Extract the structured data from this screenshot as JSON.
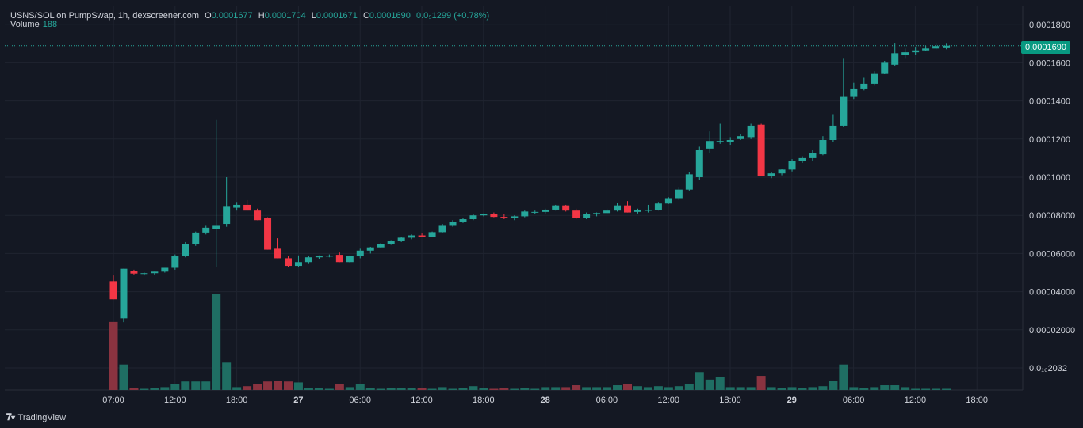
{
  "legend": {
    "pair": "USNS/SOL on PumpSwap, 1h, dexscreener.com",
    "open_label": "O",
    "open": "0.0001677",
    "high_label": "H",
    "high": "0.0001704",
    "low_label": "L",
    "low": "0.0001671",
    "close_label": "C",
    "close": "0.0001690",
    "change": "0.0₅1299 (+0.78%)",
    "volume_label": "Volume",
    "volume": "188"
  },
  "last_price_badge": "0.0001690",
  "footer": {
    "brand": "TradingView"
  },
  "colors": {
    "up": "#26a69a",
    "down": "#f23645",
    "up_volume": "#1f6e63",
    "down_volume": "#8a3340",
    "grid": "#1f2430"
  },
  "chart_data": {
    "type": "candlestick",
    "symbol": "USNS/SOL",
    "interval": "1h",
    "y_axis_ticks": [
      "0.0001800",
      "0.0001600",
      "0.0001400",
      "0.0001200",
      "0.0001000",
      "0.00008000",
      "0.00006000",
      "0.00004000",
      "0.00002000",
      "0.0₁₀2032"
    ],
    "y_axis_values": [
      0.00018,
      0.00016,
      0.00014,
      0.00012,
      0.0001,
      8e-05,
      6e-05,
      4e-05,
      2e-05,
      0
    ],
    "x_axis_ticks": [
      "07:00",
      "12:00",
      "18:00",
      "27",
      "06:00",
      "12:00",
      "18:00",
      "28",
      "06:00",
      "12:00",
      "18:00",
      "29",
      "06:00",
      "12:00",
      "18:00"
    ],
    "x_axis_bold": [
      false,
      false,
      false,
      true,
      false,
      false,
      false,
      true,
      false,
      false,
      false,
      true,
      false,
      false,
      false
    ],
    "ylim": [
      0,
      0.00019
    ],
    "grid": true,
    "candles": [
      {
        "o": 4.55e-05,
        "h": 4.85e-05,
        "l": 3.6e-05,
        "c": 3.6e-05,
        "v": 3.6e-05
      },
      {
        "o": 2.6e-05,
        "h": 5.2e-05,
        "l": 2.4e-05,
        "c": 5.2e-05,
        "v": 1.35e-05
      },
      {
        "o": 5.1e-05,
        "h": 5.15e-05,
        "l": 4.9e-05,
        "c": 4.95e-05,
        "v": 1e-06
      },
      {
        "o": 4.95e-05,
        "h": 5e-05,
        "l": 4.85e-05,
        "c": 4.97e-05,
        "v": 5e-07
      },
      {
        "o": 4.97e-05,
        "h": 5.05e-05,
        "l": 4.9e-05,
        "c": 5.05e-05,
        "v": 1e-06
      },
      {
        "o": 5.05e-05,
        "h": 5.25e-05,
        "l": 5e-05,
        "c": 5.25e-05,
        "v": 1.5e-06
      },
      {
        "o": 5.25e-05,
        "h": 5.95e-05,
        "l": 5.15e-05,
        "c": 5.85e-05,
        "v": 3e-06
      },
      {
        "o": 5.85e-05,
        "h": 6.6e-05,
        "l": 5.8e-05,
        "c": 6.5e-05,
        "v": 4.5e-06
      },
      {
        "o": 6.5e-05,
        "h": 7.15e-05,
        "l": 6.4e-05,
        "c": 7.1e-05,
        "v": 4.5e-06
      },
      {
        "o": 7.1e-05,
        "h": 7.45e-05,
        "l": 7e-05,
        "c": 7.35e-05,
        "v": 4.5e-06
      },
      {
        "o": 7.3e-05,
        "h": 0.00013,
        "l": 5.3e-05,
        "c": 7.45e-05,
        "v": 5.1e-05
      },
      {
        "o": 7.55e-05,
        "h": 0.0001,
        "l": 7.4e-05,
        "c": 8.45e-05,
        "v": 1.45e-05
      },
      {
        "o": 8.4e-05,
        "h": 8.7e-05,
        "l": 8.25e-05,
        "c": 8.55e-05,
        "v": 1.5e-06
      },
      {
        "o": 8.55e-05,
        "h": 8.8e-05,
        "l": 8.25e-05,
        "c": 8.25e-05,
        "v": 2e-06
      },
      {
        "o": 8.25e-05,
        "h": 8.35e-05,
        "l": 7.75e-05,
        "c": 7.75e-05,
        "v": 3e-06
      },
      {
        "o": 7.85e-05,
        "h": 7.9e-05,
        "l": 6.2e-05,
        "c": 6.2e-05,
        "v": 4.5e-06
      },
      {
        "o": 6.25e-05,
        "h": 6.8e-05,
        "l": 5.75e-05,
        "c": 5.75e-05,
        "v": 5e-06
      },
      {
        "o": 5.75e-05,
        "h": 5.85e-05,
        "l": 5.3e-05,
        "c": 5.35e-05,
        "v": 4.5e-06
      },
      {
        "o": 5.35e-05,
        "h": 5.9e-05,
        "l": 5.3e-05,
        "c": 5.55e-05,
        "v": 4e-06
      },
      {
        "o": 5.55e-05,
        "h": 5.85e-05,
        "l": 5.45e-05,
        "c": 5.8e-05,
        "v": 1e-06
      },
      {
        "o": 5.8e-05,
        "h": 5.9e-05,
        "l": 5.7e-05,
        "c": 5.85e-05,
        "v": 1e-06
      },
      {
        "o": 5.85e-05,
        "h": 5.95e-05,
        "l": 5.8e-05,
        "c": 5.88e-05,
        "v": 5e-07
      },
      {
        "o": 5.93e-05,
        "h": 6.05e-05,
        "l": 5.55e-05,
        "c": 5.55e-05,
        "v": 3e-06
      },
      {
        "o": 5.55e-05,
        "h": 5.9e-05,
        "l": 5.5e-05,
        "c": 5.88e-05,
        "v": 1.5e-06
      },
      {
        "o": 5.85e-05,
        "h": 6.25e-05,
        "l": 5.75e-05,
        "c": 6.15e-05,
        "v": 3e-06
      },
      {
        "o": 6.15e-05,
        "h": 6.35e-05,
        "l": 6e-05,
        "c": 6.32e-05,
        "v": 1e-06
      },
      {
        "o": 6.32e-05,
        "h": 6.55e-05,
        "l": 6.3e-05,
        "c": 6.5e-05,
        "v": 5e-07
      },
      {
        "o": 6.5e-05,
        "h": 6.7e-05,
        "l": 6.45e-05,
        "c": 6.65e-05,
        "v": 1e-06
      },
      {
        "o": 6.65e-05,
        "h": 6.85e-05,
        "l": 6.6e-05,
        "c": 6.83e-05,
        "v": 1e-06
      },
      {
        "o": 6.83e-05,
        "h": 7e-05,
        "l": 6.75e-05,
        "c": 6.95e-05,
        "v": 1e-06
      },
      {
        "o": 6.95e-05,
        "h": 7.05e-05,
        "l": 6.85e-05,
        "c": 6.88e-05,
        "v": 1e-06
      },
      {
        "o": 6.88e-05,
        "h": 7.15e-05,
        "l": 6.85e-05,
        "c": 7.12e-05,
        "v": 5e-07
      },
      {
        "o": 7.12e-05,
        "h": 7.55e-05,
        "l": 7.1e-05,
        "c": 7.45e-05,
        "v": 1.5e-06
      },
      {
        "o": 7.45e-05,
        "h": 7.75e-05,
        "l": 7.4e-05,
        "c": 7.65e-05,
        "v": 5e-07
      },
      {
        "o": 7.65e-05,
        "h": 7.85e-05,
        "l": 7.6e-05,
        "c": 7.8e-05,
        "v": 1e-06
      },
      {
        "o": 7.8e-05,
        "h": 8.05e-05,
        "l": 7.75e-05,
        "c": 8e-05,
        "v": 2e-06
      },
      {
        "o": 8e-05,
        "h": 8.1e-05,
        "l": 7.95e-05,
        "c": 8.05e-05,
        "v": 1e-06
      },
      {
        "o": 8.05e-05,
        "h": 8.15e-05,
        "l": 7.9e-05,
        "c": 7.92e-05,
        "v": 5e-07
      },
      {
        "o": 7.92e-05,
        "h": 8.05e-05,
        "l": 7.8e-05,
        "c": 7.85e-05,
        "v": 1e-06
      },
      {
        "o": 7.85e-05,
        "h": 8e-05,
        "l": 7.75e-05,
        "c": 7.95e-05,
        "v": 5e-07
      },
      {
        "o": 7.95e-05,
        "h": 8.25e-05,
        "l": 7.9e-05,
        "c": 8.2e-05,
        "v": 1e-06
      },
      {
        "o": 8.18e-05,
        "h": 8.25e-05,
        "l": 8.05e-05,
        "c": 8.18e-05,
        "v": 5e-07
      },
      {
        "o": 8.18e-05,
        "h": 8.35e-05,
        "l": 8.1e-05,
        "c": 8.3e-05,
        "v": 1.5e-06
      },
      {
        "o": 8.3e-05,
        "h": 8.55e-05,
        "l": 8.25e-05,
        "c": 8.52e-05,
        "v": 1.5e-06
      },
      {
        "o": 8.52e-05,
        "h": 8.55e-05,
        "l": 8.2e-05,
        "c": 8.25e-05,
        "v": 1.5e-06
      },
      {
        "o": 8.25e-05,
        "h": 8.35e-05,
        "l": 7.8e-05,
        "c": 7.85e-05,
        "v": 2.5e-06
      },
      {
        "o": 7.85e-05,
        "h": 8.15e-05,
        "l": 7.8e-05,
        "c": 8.05e-05,
        "v": 1.5e-06
      },
      {
        "o": 8.05e-05,
        "h": 8.15e-05,
        "l": 7.95e-05,
        "c": 8.12e-05,
        "v": 1.5e-06
      },
      {
        "o": 8.12e-05,
        "h": 8.35e-05,
        "l": 8.1e-05,
        "c": 8.25e-05,
        "v": 1.5e-06
      },
      {
        "o": 8.25e-05,
        "h": 8.65e-05,
        "l": 8.2e-05,
        "c": 8.52e-05,
        "v": 2.5e-06
      },
      {
        "o": 8.52e-05,
        "h": 8.75e-05,
        "l": 8.15e-05,
        "c": 8.15e-05,
        "v": 3e-06
      },
      {
        "o": 8.18e-05,
        "h": 8.35e-05,
        "l": 8.1e-05,
        "c": 8.3e-05,
        "v": 2e-06
      },
      {
        "o": 8.25e-05,
        "h": 8.55e-05,
        "l": 8.15e-05,
        "c": 8.28e-05,
        "v": 1.5e-06
      },
      {
        "o": 8.28e-05,
        "h": 8.7e-05,
        "l": 8.25e-05,
        "c": 8.62e-05,
        "v": 2e-06
      },
      {
        "o": 8.62e-05,
        "h": 8.95e-05,
        "l": 8.6e-05,
        "c": 8.9e-05,
        "v": 1.5e-06
      },
      {
        "o": 8.9e-05,
        "h": 9.45e-05,
        "l": 8.8e-05,
        "c": 9.35e-05,
        "v": 2e-06
      },
      {
        "o": 9.35e-05,
        "h": 0.0001025,
        "l": 9.3e-05,
        "c": 0.0001015,
        "v": 3e-06
      },
      {
        "o": 0.0001,
        "h": 0.000116,
        "l": 9.85e-05,
        "c": 0.0001145,
        "v": 9.5e-06
      },
      {
        "o": 0.000115,
        "h": 0.000124,
        "l": 0.0001125,
        "c": 0.000119,
        "v": 5.5e-06
      },
      {
        "o": 0.000119,
        "h": 0.000128,
        "l": 0.0001175,
        "c": 0.000119,
        "v": 7e-06
      },
      {
        "o": 0.0001185,
        "h": 0.000121,
        "l": 0.000117,
        "c": 0.0001195,
        "v": 1.5e-06
      },
      {
        "o": 0.00012,
        "h": 0.0001225,
        "l": 0.0001195,
        "c": 0.0001215,
        "v": 1.5e-06
      },
      {
        "o": 0.000121,
        "h": 0.000128,
        "l": 0.00012,
        "c": 0.000127,
        "v": 1.5e-06
      },
      {
        "o": 0.0001275,
        "h": 0.000128,
        "l": 0.0001005,
        "c": 0.0001005,
        "v": 7.5e-06
      },
      {
        "o": 0.0001005,
        "h": 0.0001025,
        "l": 9.95e-05,
        "c": 0.000102,
        "v": 1.5e-06
      },
      {
        "o": 0.000102,
        "h": 0.0001045,
        "l": 0.000101,
        "c": 0.000104,
        "v": 1e-06
      },
      {
        "o": 0.000104,
        "h": 0.0001095,
        "l": 0.000103,
        "c": 0.0001085,
        "v": 1.5e-06
      },
      {
        "o": 0.0001085,
        "h": 0.000111,
        "l": 0.0001075,
        "c": 0.00011,
        "v": 1e-06
      },
      {
        "o": 0.00011,
        "h": 0.0001145,
        "l": 0.0001085,
        "c": 0.0001125,
        "v": 1.5e-06
      },
      {
        "o": 0.000112,
        "h": 0.0001215,
        "l": 0.0001115,
        "c": 0.0001195,
        "v": 2e-06
      },
      {
        "o": 0.0001195,
        "h": 0.000133,
        "l": 0.0001185,
        "c": 0.000127,
        "v": 5e-06
      },
      {
        "o": 0.000127,
        "h": 0.0001625,
        "l": 0.0001265,
        "c": 0.0001425,
        "v": 1.35e-05
      },
      {
        "o": 0.0001425,
        "h": 0.0001495,
        "l": 0.000141,
        "c": 0.0001465,
        "v": 1.5e-06
      },
      {
        "o": 0.0001465,
        "h": 0.0001525,
        "l": 0.0001455,
        "c": 0.000149,
        "v": 1e-06
      },
      {
        "o": 0.000149,
        "h": 0.0001555,
        "l": 0.000148,
        "c": 0.0001545,
        "v": 1.5e-06
      },
      {
        "o": 0.0001545,
        "h": 0.000161,
        "l": 0.000154,
        "c": 0.00016,
        "v": 2.5e-06
      },
      {
        "o": 0.000159,
        "h": 0.0001705,
        "l": 0.0001585,
        "c": 0.000165,
        "v": 2.5e-06
      },
      {
        "o": 0.000164,
        "h": 0.0001675,
        "l": 0.0001625,
        "c": 0.0001655,
        "v": 1.5e-06
      },
      {
        "o": 0.0001655,
        "h": 0.000168,
        "l": 0.000164,
        "c": 0.0001665,
        "v": 5e-07
      },
      {
        "o": 0.0001665,
        "h": 0.000169,
        "l": 0.000166,
        "c": 0.0001675,
        "v": 5e-07
      },
      {
        "o": 0.0001675,
        "h": 0.0001705,
        "l": 0.000167,
        "c": 0.0001688,
        "v": 5e-07
      },
      {
        "o": 0.0001677,
        "h": 0.0001704,
        "l": 0.0001671,
        "c": 0.000169,
        "v": 5e-07
      }
    ]
  }
}
